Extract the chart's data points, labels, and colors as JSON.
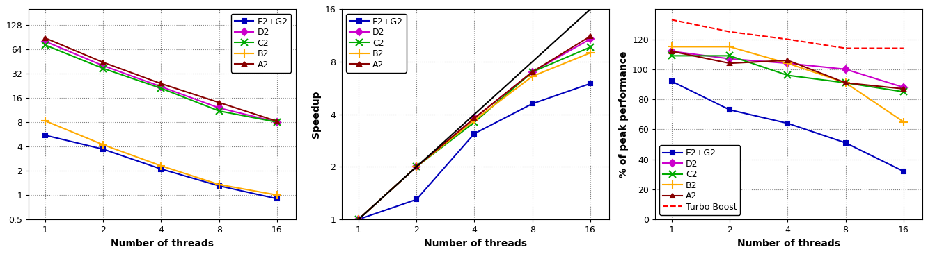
{
  "threads": [
    1,
    2,
    4,
    8,
    16
  ],
  "plot1": {
    "xlabel": "Number of threads",
    "ylim": [
      0.5,
      200
    ],
    "yticks": [
      0.5,
      1,
      2,
      4,
      8,
      16,
      32,
      64,
      128
    ],
    "ytick_labels": [
      "0.5",
      "1",
      "2",
      "4",
      "8",
      "16",
      "32",
      "64",
      "128"
    ],
    "series": {
      "E2+G2": {
        "color": "#0000bb",
        "marker": "s",
        "markersize": 5,
        "linestyle": "-",
        "values": [
          5.5,
          3.7,
          2.1,
          1.3,
          0.9
        ]
      },
      "D2": {
        "color": "#cc00cc",
        "marker": "D",
        "markersize": 5,
        "linestyle": "-",
        "values": [
          80,
          40,
          22,
          12,
          8.0
        ]
      },
      "C2": {
        "color": "#00aa00",
        "marker": "x",
        "markersize": 7,
        "linestyle": "-",
        "values": [
          72,
          37,
          21,
          11,
          8.0
        ]
      },
      "B2": {
        "color": "#ffaa00",
        "marker": "+",
        "markersize": 8,
        "linestyle": "-",
        "values": [
          8.3,
          4.2,
          2.3,
          1.35,
          1.0
        ]
      },
      "A2": {
        "color": "#880000",
        "marker": "^",
        "markersize": 5,
        "linestyle": "-",
        "values": [
          88,
          44,
          24,
          14,
          8.2
        ]
      }
    }
  },
  "plot2": {
    "ylabel": "Speedup",
    "xlabel": "Number of threads",
    "ylim": [
      1,
      16
    ],
    "yticks": [
      1,
      2,
      4,
      8,
      16
    ],
    "series": {
      "E2+G2": {
        "color": "#0000bb",
        "marker": "s",
        "markersize": 5,
        "linestyle": "-",
        "values": [
          1.0,
          1.3,
          3.1,
          4.6,
          6.0
        ]
      },
      "D2": {
        "color": "#cc00cc",
        "marker": "D",
        "markersize": 5,
        "linestyle": "-",
        "values": [
          1.0,
          2.0,
          3.8,
          7.0,
          10.8
        ]
      },
      "C2": {
        "color": "#00aa00",
        "marker": "x",
        "markersize": 7,
        "linestyle": "-",
        "values": [
          1.0,
          2.0,
          3.6,
          7.0,
          9.7
        ]
      },
      "B2": {
        "color": "#ffaa00",
        "marker": "+",
        "markersize": 8,
        "linestyle": "-",
        "values": [
          1.0,
          2.0,
          3.7,
          6.6,
          9.0
        ]
      },
      "A2": {
        "color": "#880000",
        "marker": "^",
        "markersize": 5,
        "linestyle": "-",
        "values": [
          1.0,
          2.0,
          3.8,
          7.0,
          11.2
        ]
      },
      "ideal": {
        "color": "#000000",
        "marker": "",
        "markersize": 0,
        "linestyle": "-",
        "values": [
          1,
          2,
          4,
          8,
          16
        ]
      }
    }
  },
  "plot3": {
    "ylabel": "% of peak performance",
    "xlabel": "Number of threads",
    "ylim": [
      0,
      140
    ],
    "yticks": [
      0,
      20,
      40,
      60,
      80,
      100,
      120
    ],
    "series": {
      "E2+G2": {
        "color": "#0000bb",
        "marker": "s",
        "markersize": 5,
        "linestyle": "-",
        "values": [
          92,
          73,
          64,
          51,
          32
        ]
      },
      "D2": {
        "color": "#cc00cc",
        "marker": "D",
        "markersize": 5,
        "linestyle": "-",
        "values": [
          112,
          107,
          104,
          100,
          88
        ]
      },
      "C2": {
        "color": "#00aa00",
        "marker": "x",
        "markersize": 7,
        "linestyle": "-",
        "values": [
          109,
          109,
          96,
          91,
          85
        ]
      },
      "B2": {
        "color": "#ffaa00",
        "marker": "+",
        "markersize": 8,
        "linestyle": "-",
        "values": [
          115,
          115,
          104,
          91,
          65
        ]
      },
      "A2": {
        "color": "#880000",
        "marker": "^",
        "markersize": 5,
        "linestyle": "-",
        "values": [
          112,
          104,
          106,
          91,
          87
        ]
      },
      "Turbo Boost": {
        "color": "#ff0000",
        "marker": "",
        "markersize": 0,
        "linestyle": "--",
        "values": [
          133,
          125,
          120,
          114,
          114
        ]
      }
    }
  },
  "label_fontsize": 10,
  "tick_fontsize": 9,
  "legend_fontsize": 9,
  "linewidth": 1.5
}
